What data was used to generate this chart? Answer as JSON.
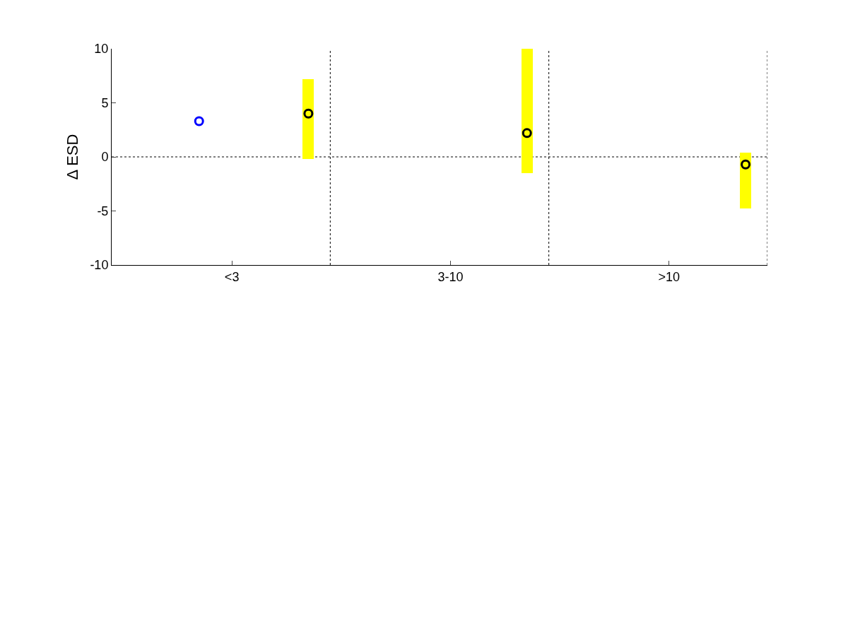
{
  "chart_data": {
    "type": "scatter",
    "ylabel": "Δ ESD",
    "categories": [
      "<3",
      "3-10",
      ">10"
    ],
    "ylim": [
      -10,
      10
    ],
    "yticks": [
      -10,
      -5,
      0,
      5,
      10
    ],
    "series": [
      {
        "type": "bar",
        "color": "#ffff00",
        "base": [
          -0.2,
          -1.5,
          -4.8
        ],
        "values": [
          7.4,
          11.5,
          5.2
        ]
      },
      {
        "color": "#0000ff",
        "values": [
          3.3,
          null,
          null
        ]
      },
      {
        "color": "#000000",
        "values": [
          4.0,
          2.2,
          -0.7
        ]
      }
    ],
    "ref_lines": [
      {
        "axis": "y",
        "value": 0,
        "line_style": "dotted",
        "color": "#000000"
      }
    ],
    "marker": "circle",
    "grid": false
  }
}
